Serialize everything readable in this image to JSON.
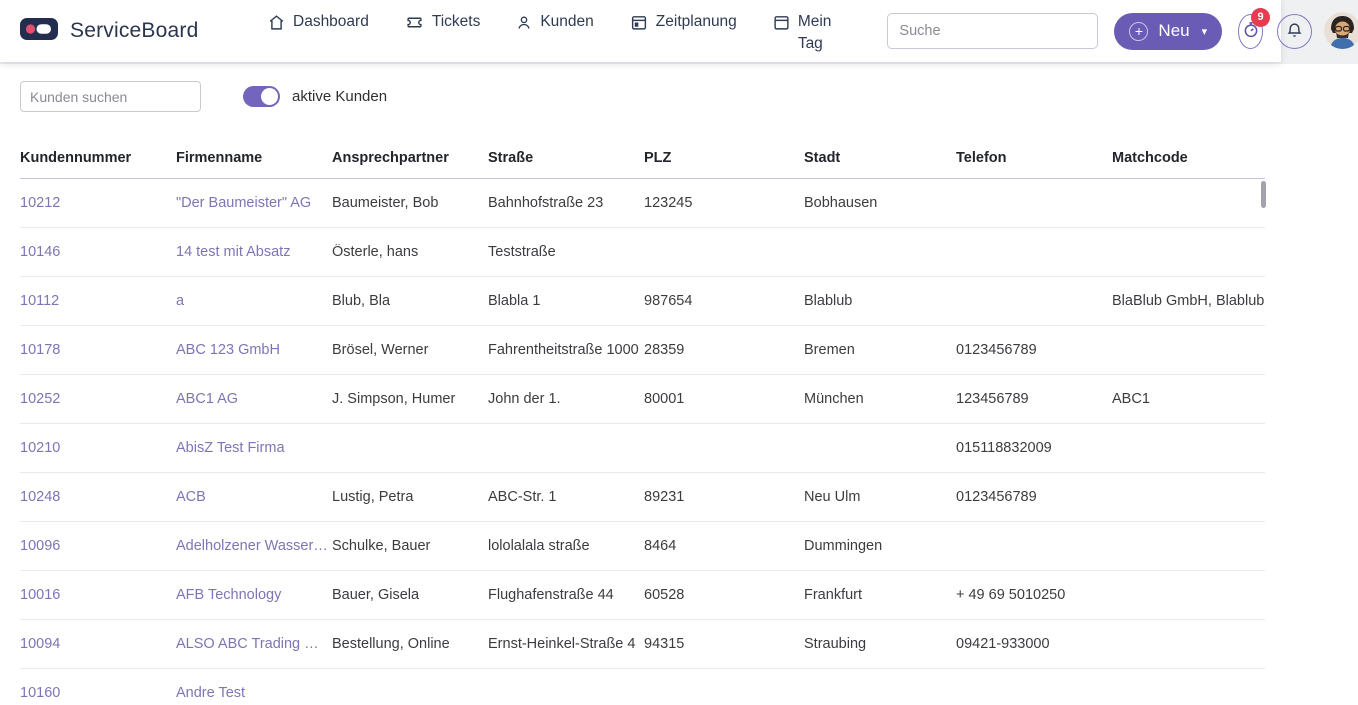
{
  "brand": {
    "name": "ServiceBoard"
  },
  "nav": {
    "items": [
      {
        "label": "Dashboard",
        "icon": "home-icon"
      },
      {
        "label": "Tickets",
        "icon": "ticket-icon"
      },
      {
        "label": "Kunden",
        "icon": "user-icon"
      },
      {
        "label": "Zeitplanung",
        "icon": "calendar-grid-icon"
      },
      {
        "label": "Mein Tag",
        "icon": "calendar-icon"
      }
    ]
  },
  "topbar": {
    "search_placeholder": "Suche",
    "neu_plus": "+",
    "neu_label": "Neu",
    "neu_caret": "▾",
    "timer_badge": "9"
  },
  "filters": {
    "search_placeholder": "Kunden suchen",
    "toggle_label": "aktive Kunden",
    "toggle_on": true
  },
  "table": {
    "columns": [
      "Kundennummer",
      "Firmenname",
      "Ansprechpartner",
      "Straße",
      "PLZ",
      "Stadt",
      "Telefon",
      "Matchcode"
    ],
    "rows": [
      [
        "10212",
        "\"Der Baumeister\" AG",
        "Baumeister, Bob",
        "Bahnhofstraße 23",
        "123245",
        "Bobhausen",
        "",
        ""
      ],
      [
        "10146",
        "14 test mit Absatz",
        "Österle, hans",
        "Teststraße",
        "",
        "",
        "",
        ""
      ],
      [
        "10112",
        "a",
        "Blub, Bla",
        "Blabla 1",
        "987654",
        "Blablub",
        "",
        "BlaBlub GmbH, Blablub"
      ],
      [
        "10178",
        "ABC 123 GmbH",
        "Brösel, Werner",
        "Fahrentheitstraße 1000",
        "28359",
        "Bremen",
        "0123456789",
        ""
      ],
      [
        "10252",
        "ABC1 AG",
        "J. Simpson, Humer",
        "John der 1.",
        "80001",
        "München",
        "123456789",
        "ABC1"
      ],
      [
        "10210",
        "AbisZ Test Firma",
        "",
        "",
        "",
        "",
        "015118832009",
        ""
      ],
      [
        "10248",
        "ACB",
        "Lustig, Petra",
        "ABC-Str. 1",
        "89231",
        "Neu Ulm",
        "0123456789",
        ""
      ],
      [
        "10096",
        "Adelholzener Wasser…",
        "Schulke, Bauer",
        "lololalala straße",
        "8464",
        "Dummingen",
        "",
        ""
      ],
      [
        "10016",
        "AFB Technology",
        "Bauer, Gisela",
        "Flughafenstraße 44",
        "60528",
        "Frankfurt",
        "+ 49 69 5010250",
        ""
      ],
      [
        "10094",
        "ALSO ABC Trading …",
        "Bestellung, Online",
        "Ernst-Heinkel-Straße 4",
        "94315",
        "Straubing",
        "09421-933000",
        ""
      ],
      [
        "10160",
        "Andre Test",
        "",
        "",
        "",
        "",
        "",
        ""
      ]
    ]
  },
  "colors": {
    "accent": "#6A5CB4",
    "badge": "#E83B52",
    "link": "#7D75B5",
    "toggle": "#7365BD",
    "logo_dot": "#E0506E",
    "logo_bg": "#232E4E"
  }
}
